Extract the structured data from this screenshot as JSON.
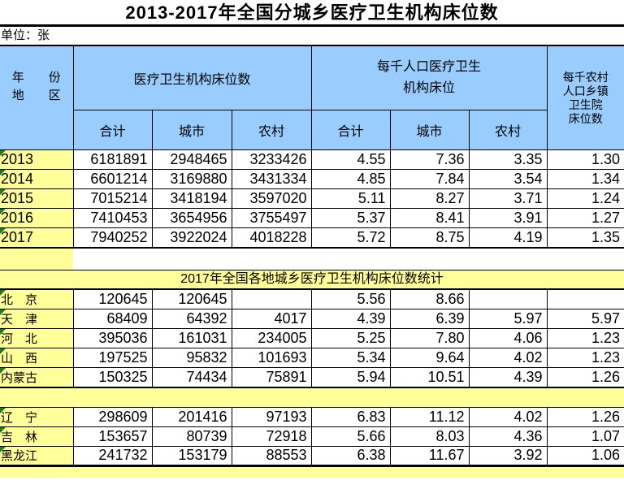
{
  "title": "2013-2017年全国分城乡医疗卫生机构床位数",
  "unit_label": "单位：张",
  "colors": {
    "header_fill": "#99CCFF",
    "label_fill": "#FFFF99",
    "cell_flag_green": "#1E7B1E",
    "border": "#000000"
  },
  "header": {
    "corner_line1": "年　　份",
    "corner_line2": "地　　区",
    "group_beds": "医疗卫生机构床位数",
    "group_per_thousand": "每千人口医疗卫生\n机构床位",
    "group_rural_township": "每千农村\n人口乡镇\n卫生院\n床位数",
    "sub_headers": [
      "合计",
      "城市",
      "农村",
      "合计",
      "城市",
      "农村"
    ]
  },
  "section_banner": "2017年全国各地城乡医疗卫生机构床位数统计",
  "national_rows": [
    {
      "label": "2013",
      "values": [
        "6181891",
        "2948465",
        "3233426",
        "4.55",
        "7.36",
        "3.35",
        "1.30"
      ]
    },
    {
      "label": "2014",
      "values": [
        "6601214",
        "3169880",
        "3431334",
        "4.85",
        "7.84",
        "3.54",
        "1.34"
      ]
    },
    {
      "label": "2015",
      "values": [
        "7015214",
        "3418194",
        "3597020",
        "5.11",
        "8.27",
        "3.71",
        "1.24"
      ]
    },
    {
      "label": "2016",
      "values": [
        "7410453",
        "3654956",
        "3755497",
        "5.37",
        "8.41",
        "3.91",
        "1.27"
      ]
    },
    {
      "label": "2017",
      "values": [
        "7940252",
        "3922024",
        "4018228",
        "5.72",
        "8.75",
        "4.19",
        "1.35"
      ]
    }
  ],
  "province_rows_1": [
    {
      "label": "北　京",
      "values": [
        "120645",
        "120645",
        "",
        "5.56",
        "8.66",
        "",
        ""
      ]
    },
    {
      "label": "天　津",
      "values": [
        "68409",
        "64392",
        "4017",
        "4.39",
        "6.39",
        "5.97",
        "5.97"
      ]
    },
    {
      "label": "河　北",
      "values": [
        "395036",
        "161031",
        "234005",
        "5.25",
        "7.80",
        "4.06",
        "1.23"
      ]
    },
    {
      "label": "山　西",
      "values": [
        "197525",
        "95832",
        "101693",
        "5.34",
        "9.64",
        "4.02",
        "1.23"
      ]
    },
    {
      "label": "内蒙古",
      "values": [
        "150325",
        "74434",
        "75891",
        "5.94",
        "10.51",
        "4.39",
        "1.26"
      ]
    }
  ],
  "province_rows_2": [
    {
      "label": "辽　宁",
      "values": [
        "298609",
        "201416",
        "97193",
        "6.83",
        "11.12",
        "4.02",
        "1.26"
      ]
    },
    {
      "label": "吉　林",
      "values": [
        "153657",
        "80739",
        "72918",
        "5.66",
        "8.03",
        "4.36",
        "1.07"
      ]
    },
    {
      "label": "黑龙江",
      "values": [
        "241732",
        "153179",
        "88553",
        "6.38",
        "11.67",
        "3.92",
        "1.06"
      ]
    }
  ]
}
